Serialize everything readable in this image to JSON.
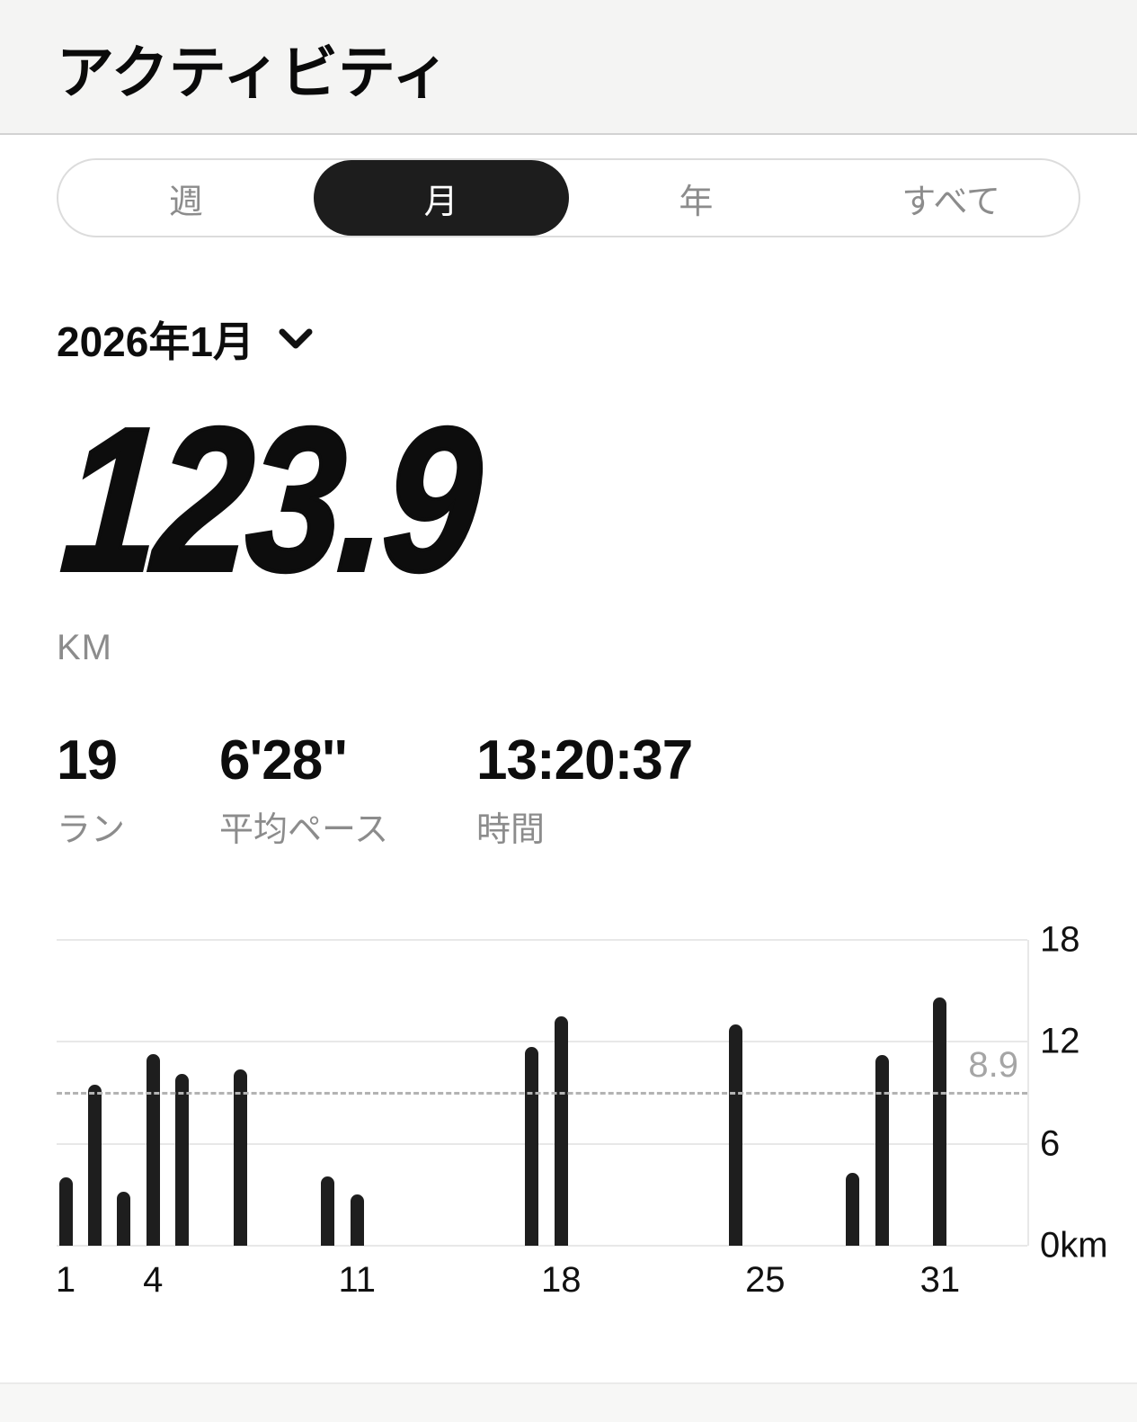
{
  "header": {
    "title": "アクティビティ"
  },
  "tabs": {
    "items": [
      {
        "label": "週",
        "selected": false
      },
      {
        "label": "月",
        "selected": true
      },
      {
        "label": "年",
        "selected": false
      },
      {
        "label": "すべて",
        "selected": false
      }
    ]
  },
  "period": {
    "label": "2026年1月",
    "icon": "chevron-down-icon"
  },
  "summary": {
    "distance": "123.9",
    "unit": "KM"
  },
  "stats": [
    {
      "value": "19",
      "label": "ラン"
    },
    {
      "value": "6'28''",
      "label": "平均ペース"
    },
    {
      "value": "13:20:37",
      "label": "時間"
    }
  ],
  "chart_data": {
    "type": "bar",
    "title": "",
    "units": "km",
    "x": [
      1,
      2,
      3,
      4,
      5,
      7,
      10,
      11,
      17,
      18,
      24,
      28,
      29,
      31
    ],
    "values": [
      4.0,
      9.5,
      3.2,
      11.3,
      10.1,
      10.4,
      4.1,
      3.0,
      11.7,
      13.5,
      13.0,
      4.3,
      11.2,
      14.6
    ],
    "x_domain_days": [
      1,
      31
    ],
    "x_ticks": [
      {
        "day": 1,
        "label": "1"
      },
      {
        "day": 4,
        "label": "4"
      },
      {
        "day": 11,
        "label": "11"
      },
      {
        "day": 18,
        "label": "18"
      },
      {
        "day": 25,
        "label": "25"
      },
      {
        "day": 31,
        "label": "31"
      }
    ],
    "y_ticks": [
      {
        "value": 0,
        "label": "0km"
      },
      {
        "value": 6,
        "label": "6"
      },
      {
        "value": 12,
        "label": "12"
      },
      {
        "value": 18,
        "label": "18"
      }
    ],
    "ylim": [
      0,
      18
    ],
    "average": {
      "value": 8.9,
      "label": "8.9"
    },
    "grid": "horizontal",
    "legend": "none",
    "bar_color": "#1e1e1e"
  },
  "colors": {
    "accent_black": "#1d1d1d",
    "muted_text": "#8c8c8c",
    "grid_line": "#e8e8e8",
    "dashed_line": "#b3b3b3",
    "header_bg": "#f4f4f3",
    "bottom_bar_bg": "#f7f7f6"
  }
}
